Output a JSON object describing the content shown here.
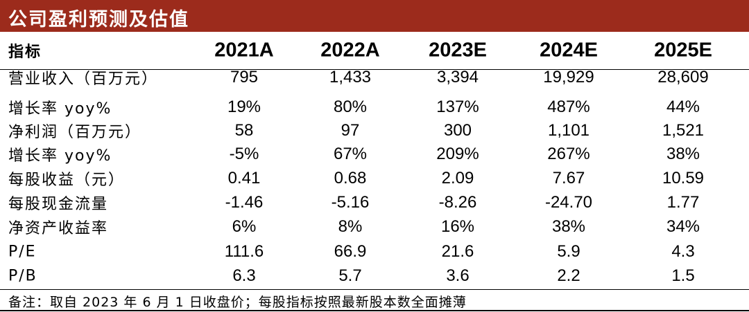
{
  "header": {
    "title": "公司盈利预测及估值"
  },
  "table": {
    "columns": [
      "指标",
      "2021A",
      "2022A",
      "2023E",
      "2024E",
      "2025E"
    ],
    "rows": [
      [
        "营业收入（百万元）",
        "795",
        "1,433",
        "3,394",
        "19,929",
        "28,609"
      ],
      [
        "增长率 yoy%",
        "19%",
        "80%",
        "137%",
        "487%",
        "44%"
      ],
      [
        "净利润（百万元）",
        "58",
        "97",
        "300",
        "1,101",
        "1,521"
      ],
      [
        "增长率 yoy%",
        "-5%",
        "67%",
        "209%",
        "267%",
        "38%"
      ],
      [
        "每股收益（元）",
        "0.41",
        "0.68",
        "2.09",
        "7.67",
        "10.59"
      ],
      [
        "每股现金流量",
        "-1.46",
        "-5.16",
        "-8.26",
        "-24.70",
        "1.77"
      ],
      [
        "净资产收益率",
        "6%",
        "8%",
        "16%",
        "38%",
        "34%"
      ],
      [
        "P/E",
        "111.6",
        "66.9",
        "21.6",
        "5.9",
        "4.3"
      ],
      [
        "P/B",
        "6.3",
        "5.7",
        "3.6",
        "2.2",
        "1.5"
      ]
    ]
  },
  "note": "备注：取自 2023 年 6 月 1 日收盘价；每股指标按照最新股本数全面摊薄"
}
